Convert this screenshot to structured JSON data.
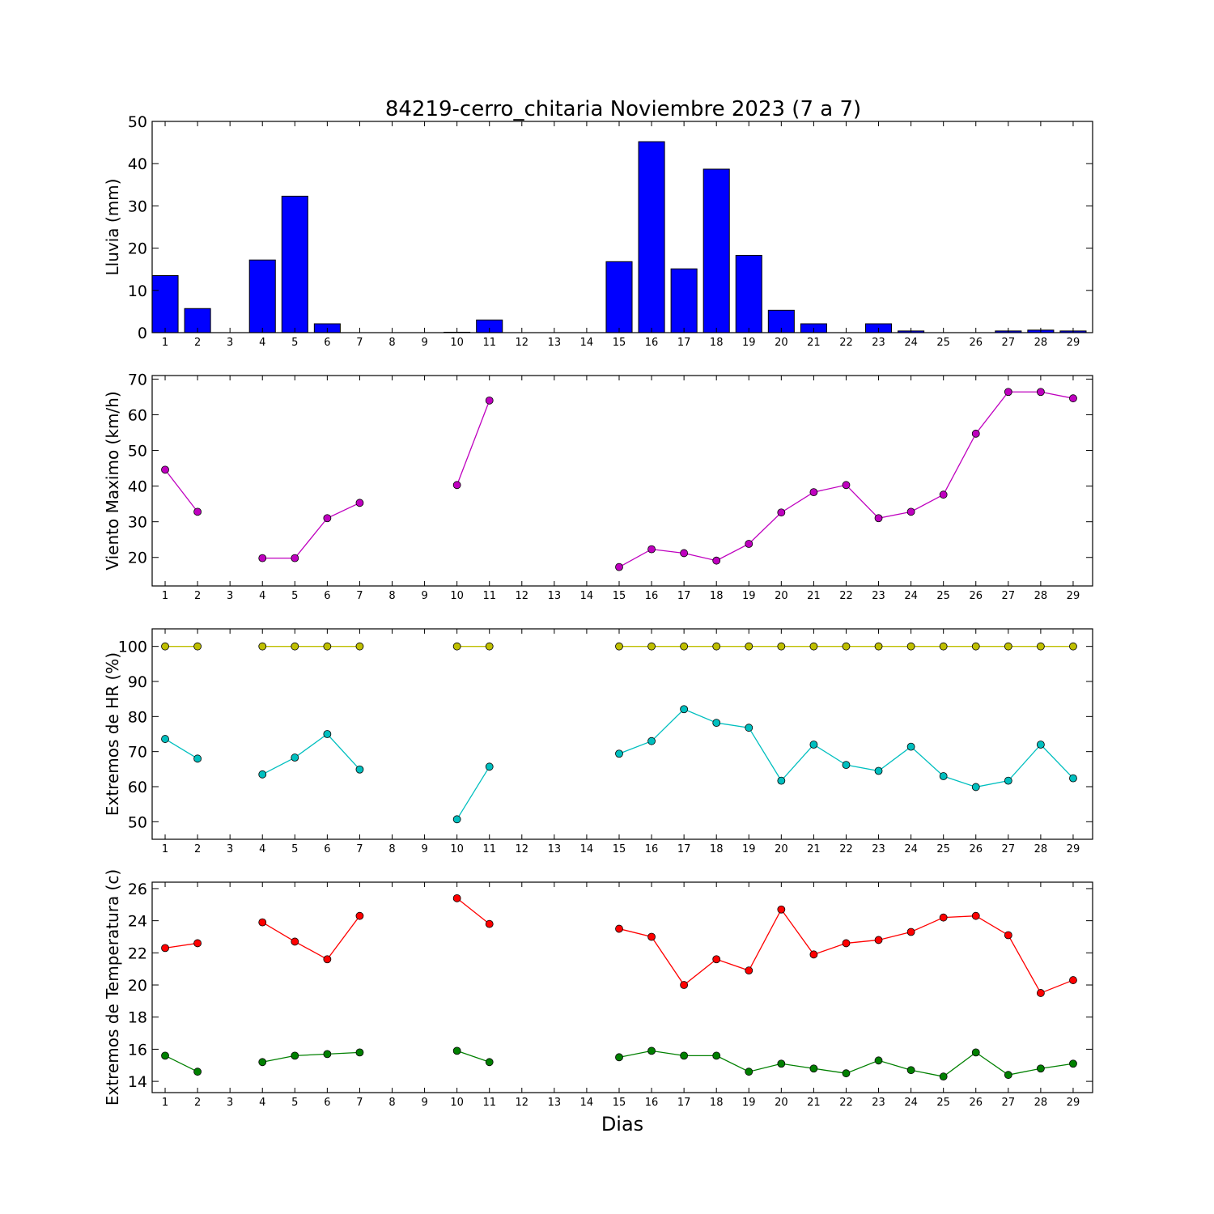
{
  "title": "84219-cerro_chitaria Noviembre 2023  (7 a 7)",
  "xlabel": "Dias",
  "chart_data": [
    {
      "type": "bar",
      "ylabel": "Lluvia (mm)",
      "ylim": [
        0,
        50
      ],
      "yticks": [
        0,
        10,
        20,
        30,
        40,
        50
      ],
      "xticks": [
        1,
        2,
        3,
        4,
        5,
        6,
        7,
        8,
        9,
        10,
        11,
        12,
        13,
        14,
        15,
        16,
        17,
        18,
        19,
        20,
        21,
        22,
        23,
        24,
        25,
        26,
        27,
        28,
        29
      ],
      "color": "#0000ff",
      "x": [
        1,
        2,
        3,
        4,
        5,
        6,
        7,
        8,
        9,
        10,
        11,
        12,
        13,
        14,
        15,
        16,
        17,
        18,
        19,
        20,
        21,
        22,
        23,
        24,
        25,
        26,
        27,
        28,
        29
      ],
      "values": [
        13.5,
        5.7,
        0,
        17.2,
        32.3,
        2.1,
        0,
        0,
        0,
        0.1,
        3.0,
        0,
        0,
        0,
        16.8,
        45.2,
        15.1,
        38.7,
        18.3,
        5.3,
        2.1,
        0,
        2.1,
        0.4,
        0,
        0,
        0.4,
        0.6,
        0.4
      ]
    },
    {
      "type": "line",
      "ylabel": "Viento Maximo (km/h)",
      "ylim": [
        12,
        71
      ],
      "yticks": [
        20,
        30,
        40,
        50,
        60,
        70
      ],
      "xticks": [
        1,
        2,
        3,
        4,
        5,
        6,
        7,
        8,
        9,
        10,
        11,
        12,
        13,
        14,
        15,
        16,
        17,
        18,
        19,
        20,
        21,
        22,
        23,
        24,
        25,
        26,
        27,
        28,
        29
      ],
      "series": [
        {
          "color": "#bf00bf",
          "x": [
            1,
            2,
            3,
            4,
            5,
            6,
            7,
            8,
            9,
            10,
            11,
            12,
            13,
            14,
            15,
            16,
            17,
            18,
            19,
            20,
            21,
            22,
            23,
            24,
            25,
            26,
            27,
            28,
            29
          ],
          "y": [
            44.6,
            32.8,
            null,
            19.8,
            19.8,
            31.0,
            35.3,
            null,
            null,
            40.3,
            64.0,
            null,
            null,
            null,
            17.3,
            22.3,
            21.2,
            19.1,
            23.8,
            32.6,
            38.3,
            40.3,
            31.0,
            32.8,
            37.6,
            54.7,
            66.4,
            66.4,
            64.6
          ]
        }
      ]
    },
    {
      "type": "line",
      "ylabel": "Extremos de HR (%)",
      "ylim": [
        45,
        105
      ],
      "yticks": [
        50,
        60,
        70,
        80,
        90,
        100
      ],
      "xticks": [
        1,
        2,
        3,
        4,
        5,
        6,
        7,
        8,
        9,
        10,
        11,
        12,
        13,
        14,
        15,
        16,
        17,
        18,
        19,
        20,
        21,
        22,
        23,
        24,
        25,
        26,
        27,
        28,
        29
      ],
      "series": [
        {
          "color": "#bfbf00",
          "x": [
            1,
            2,
            3,
            4,
            5,
            6,
            7,
            8,
            9,
            10,
            11,
            12,
            13,
            14,
            15,
            16,
            17,
            18,
            19,
            20,
            21,
            22,
            23,
            24,
            25,
            26,
            27,
            28,
            29
          ],
          "y": [
            100,
            100,
            null,
            100,
            100,
            100,
            100,
            null,
            null,
            100,
            100,
            null,
            null,
            null,
            100,
            100,
            100,
            100,
            100,
            100,
            100,
            100,
            100,
            100,
            100,
            100,
            100,
            100,
            100
          ]
        },
        {
          "color": "#00bfbf",
          "x": [
            1,
            2,
            3,
            4,
            5,
            6,
            7,
            8,
            9,
            10,
            11,
            12,
            13,
            14,
            15,
            16,
            17,
            18,
            19,
            20,
            21,
            22,
            23,
            24,
            25,
            26,
            27,
            28,
            29
          ],
          "y": [
            73.6,
            68.0,
            null,
            63.5,
            68.3,
            75.0,
            64.9,
            null,
            null,
            50.7,
            65.7,
            null,
            null,
            null,
            69.4,
            73.0,
            82.1,
            78.2,
            76.8,
            61.7,
            72.0,
            66.2,
            64.5,
            71.4,
            63.0,
            59.9,
            61.7,
            72.0,
            62.4
          ]
        }
      ]
    },
    {
      "type": "line",
      "ylabel": "Extremos de Temperatura (c)",
      "ylim": [
        13.3,
        26.4
      ],
      "yticks": [
        14,
        16,
        18,
        20,
        22,
        24,
        26
      ],
      "xticks": [
        1,
        2,
        3,
        4,
        5,
        6,
        7,
        8,
        9,
        10,
        11,
        12,
        13,
        14,
        15,
        16,
        17,
        18,
        19,
        20,
        21,
        22,
        23,
        24,
        25,
        26,
        27,
        28,
        29
      ],
      "series": [
        {
          "color": "#ff0000",
          "x": [
            1,
            2,
            3,
            4,
            5,
            6,
            7,
            8,
            9,
            10,
            11,
            12,
            13,
            14,
            15,
            16,
            17,
            18,
            19,
            20,
            21,
            22,
            23,
            24,
            25,
            26,
            27,
            28,
            29
          ],
          "y": [
            22.3,
            22.6,
            null,
            23.9,
            22.7,
            21.6,
            24.3,
            null,
            null,
            25.4,
            23.8,
            null,
            null,
            null,
            23.5,
            23.0,
            20.0,
            21.6,
            20.9,
            24.7,
            21.9,
            22.6,
            22.8,
            23.3,
            24.2,
            24.3,
            23.1,
            19.5,
            20.3
          ]
        },
        {
          "color": "#008000",
          "x": [
            1,
            2,
            3,
            4,
            5,
            6,
            7,
            8,
            9,
            10,
            11,
            12,
            13,
            14,
            15,
            16,
            17,
            18,
            19,
            20,
            21,
            22,
            23,
            24,
            25,
            26,
            27,
            28,
            29
          ],
          "y": [
            15.6,
            14.6,
            null,
            15.2,
            15.6,
            15.7,
            15.8,
            null,
            null,
            15.9,
            15.2,
            null,
            null,
            null,
            15.5,
            15.9,
            15.6,
            15.6,
            14.6,
            15.1,
            14.8,
            14.5,
            15.3,
            14.7,
            14.3,
            15.8,
            14.4,
            14.8,
            15.1
          ]
        }
      ]
    }
  ]
}
